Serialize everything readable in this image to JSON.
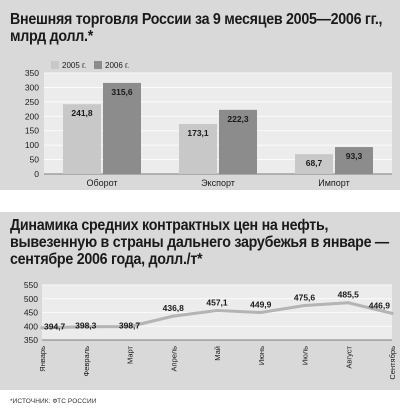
{
  "chart_data": [
    {
      "type": "bar",
      "title": "Внешняя торговля России за 9 месяцев 2005—2006 гг., млрд долл.*",
      "categories": [
        "Оборот",
        "Экспорт",
        "Импорт"
      ],
      "series": [
        {
          "name": "2005 г.",
          "values": [
            241.8,
            173.1,
            68.7
          ],
          "labels": [
            "241,8",
            "173,1",
            "68,7"
          ],
          "color": "#c8c8c8"
        },
        {
          "name": "2006 г.",
          "values": [
            315.6,
            222.3,
            93.3
          ],
          "labels": [
            "315,6",
            "222,3",
            "93,3"
          ],
          "color": "#8c8c8c"
        }
      ],
      "yticks": [
        "0",
        "50",
        "100",
        "150",
        "200",
        "250",
        "300",
        "350"
      ],
      "ylim": [
        0,
        350
      ],
      "grid": true,
      "legend": "top-left"
    },
    {
      "type": "line",
      "title": "Динамика средних контрактных цен на нефть, вывезенную в страны дальнего зарубежья в январе — сентябре 2006 года, долл./т*",
      "categories": [
        "Январь",
        "Февраль",
        "Март",
        "Апрель",
        "Май",
        "Июнь",
        "Июль",
        "Август",
        "Сентябрь"
      ],
      "series": [
        {
          "values": [
            394.7,
            398.3,
            398.7,
            436.8,
            457.1,
            449.9,
            475.6,
            485.5,
            446.9
          ],
          "labels": [
            "394,7",
            "398,3",
            "398,7",
            "436,8",
            "457,1",
            "449,9",
            "475,6",
            "485,5",
            "446,9"
          ],
          "color": "#b4b4b4"
        }
      ],
      "yticks": [
        "350",
        "400",
        "450",
        "500",
        "550"
      ],
      "ylim": [
        350,
        550
      ],
      "grid": true
    }
  ],
  "source": "*ИСТОЧНИК: ФТС РОССИИ"
}
